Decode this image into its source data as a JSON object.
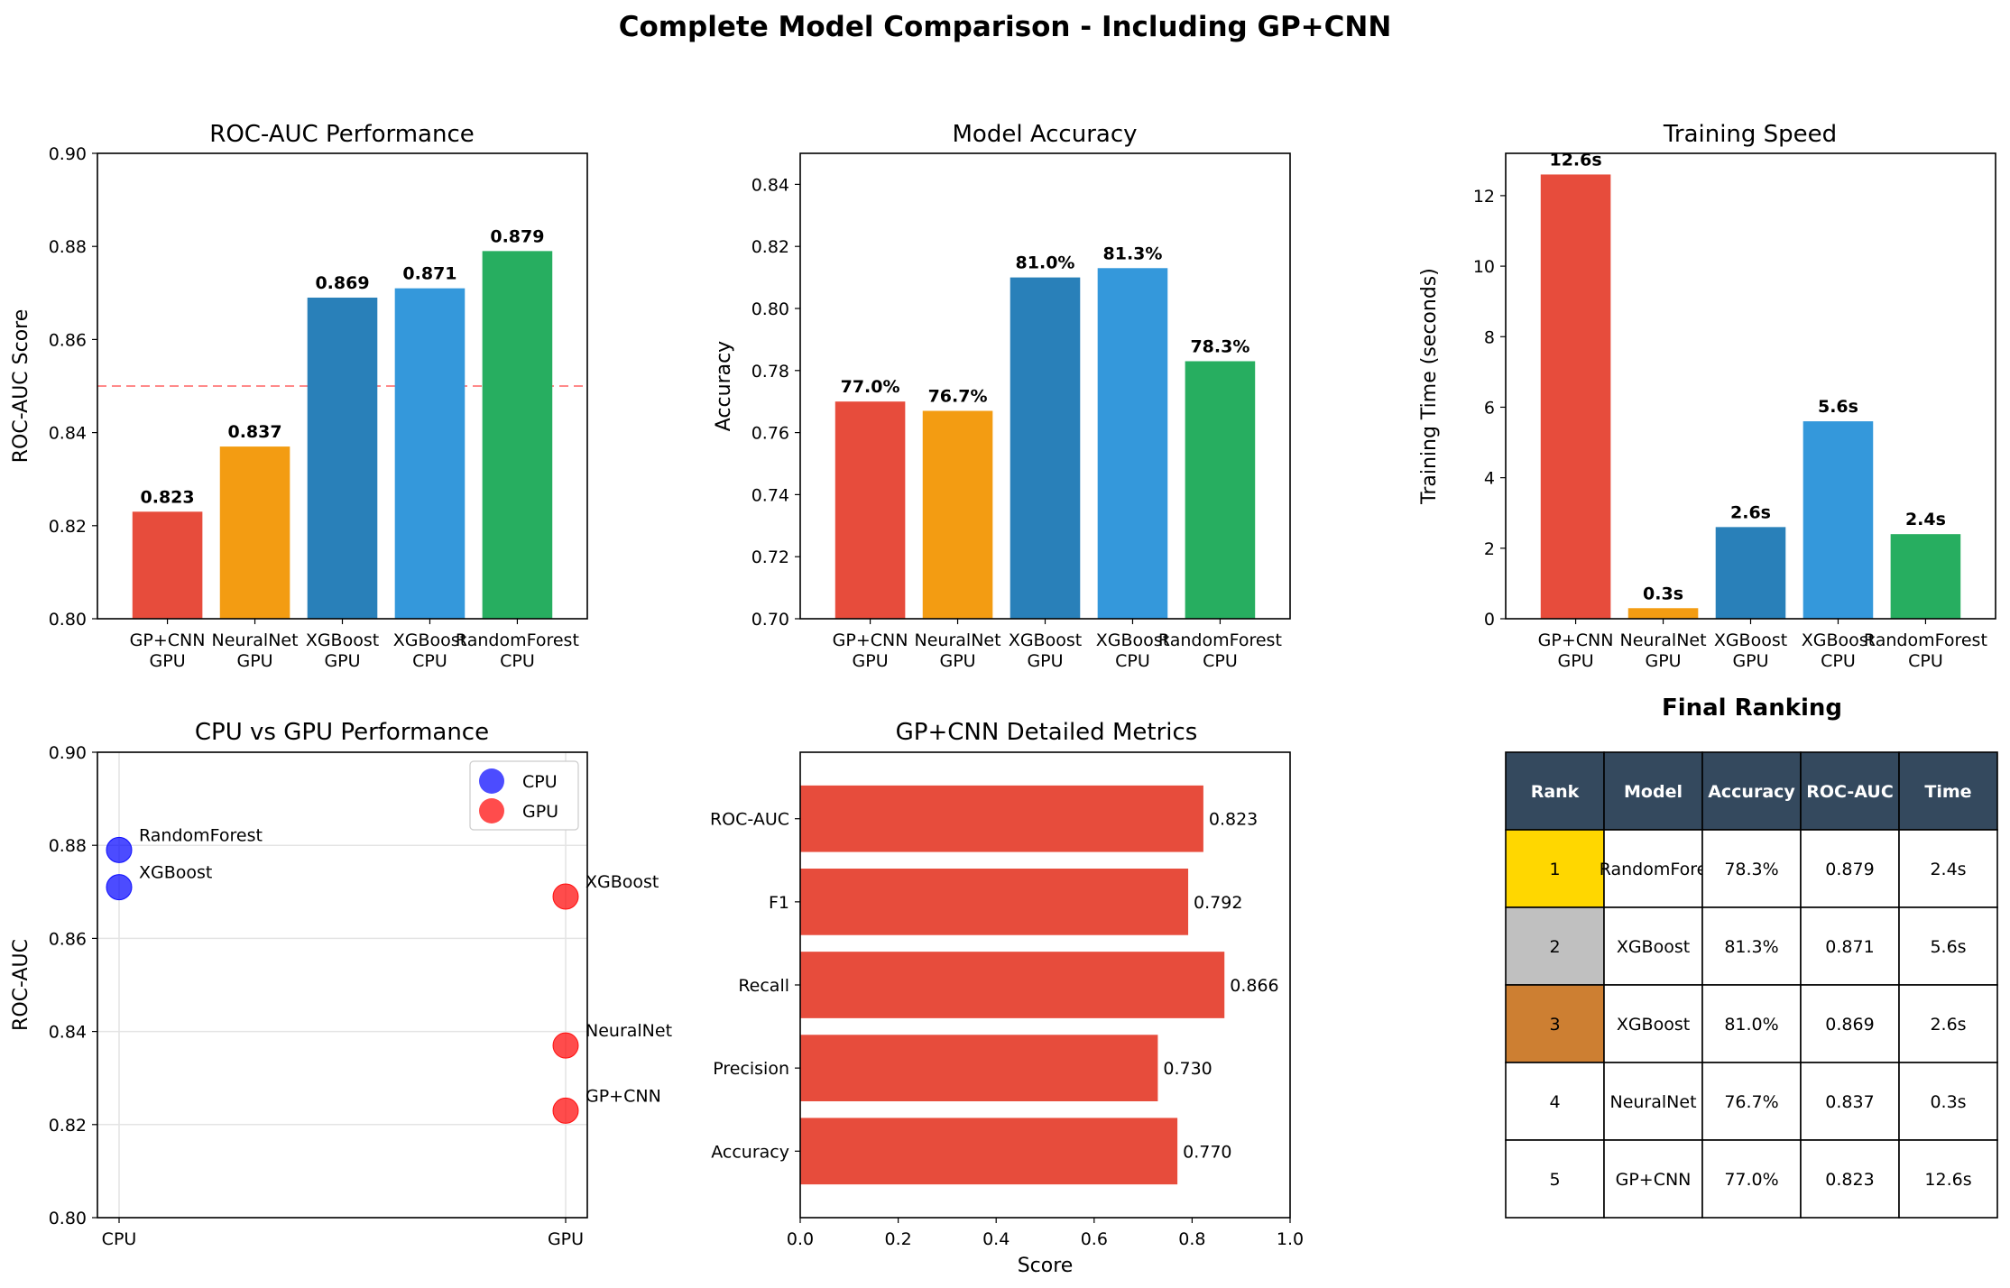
{
  "suptitle": "Complete Model Comparison - Including GP+CNN",
  "chart_data": [
    {
      "type": "bar",
      "title": "ROC-AUC Performance",
      "ylabel": "ROC-AUC Score",
      "categories": [
        "GP+CNN\nGPU",
        "NeuralNet\nGPU",
        "XGBoost\nGPU",
        "XGBoost\nCPU",
        "RandomForest\nCPU"
      ],
      "values": [
        0.823,
        0.837,
        0.869,
        0.871,
        0.879
      ],
      "labels": [
        "0.823",
        "0.837",
        "0.869",
        "0.871",
        "0.879"
      ],
      "colors": [
        "#e74c3c",
        "#f39c12",
        "#2980b9",
        "#3498db",
        "#27ae60"
      ],
      "ylim": [
        0.8,
        0.9
      ],
      "yticks": [
        "0.80",
        "0.82",
        "0.84",
        "0.86",
        "0.88",
        "0.90"
      ],
      "yticks_values": [
        0.8,
        0.82,
        0.84,
        0.86,
        0.88,
        0.9
      ],
      "reference_line": 0.85,
      "reference_color": "#ff8a8a"
    },
    {
      "type": "bar",
      "title": "Model Accuracy",
      "ylabel": "Accuracy",
      "categories": [
        "GP+CNN\nGPU",
        "NeuralNet\nGPU",
        "XGBoost\nGPU",
        "XGBoost\nCPU",
        "RandomForest\nCPU"
      ],
      "values": [
        0.77,
        0.767,
        0.81,
        0.813,
        0.783
      ],
      "labels": [
        "77.0%",
        "76.7%",
        "81.0%",
        "81.3%",
        "78.3%"
      ],
      "colors": [
        "#e74c3c",
        "#f39c12",
        "#2980b9",
        "#3498db",
        "#27ae60"
      ],
      "ylim": [
        0.7,
        0.85
      ],
      "yticks": [
        "0.70",
        "0.72",
        "0.74",
        "0.76",
        "0.78",
        "0.80",
        "0.82",
        "0.84"
      ],
      "yticks_values": [
        0.7,
        0.72,
        0.74,
        0.76,
        0.78,
        0.8,
        0.82,
        0.84
      ]
    },
    {
      "type": "bar",
      "title": "Training Speed",
      "ylabel": "Training Time (seconds)",
      "categories": [
        "GP+CNN\nGPU",
        "NeuralNet\nGPU",
        "XGBoost\nGPU",
        "XGBoost\nCPU",
        "RandomForest\nCPU"
      ],
      "values": [
        12.6,
        0.3,
        2.6,
        5.6,
        2.4
      ],
      "labels": [
        "12.6s",
        "0.3s",
        "2.6s",
        "5.6s",
        "2.4s"
      ],
      "colors": [
        "#e74c3c",
        "#f39c12",
        "#2980b9",
        "#3498db",
        "#27ae60"
      ],
      "ylim": [
        0,
        13.2
      ],
      "yticks": [
        "0",
        "2",
        "4",
        "6",
        "8",
        "10",
        "12"
      ],
      "yticks_values": [
        0,
        2,
        4,
        6,
        8,
        10,
        12
      ]
    },
    {
      "type": "scatter",
      "title": "CPU vs GPU Performance",
      "ylabel": "ROC-AUC",
      "categories": [
        "CPU",
        "GPU"
      ],
      "ylim": [
        0.8,
        0.9
      ],
      "yticks": [
        "0.80",
        "0.82",
        "0.84",
        "0.86",
        "0.88",
        "0.90"
      ],
      "yticks_values": [
        0.8,
        0.82,
        0.84,
        0.86,
        0.88,
        0.9
      ],
      "grid": true,
      "legend": "top-right",
      "series": [
        {
          "name": "CPU",
          "color": "#0000ff",
          "points": [
            {
              "x": "CPU",
              "y": 0.879,
              "label": "RandomForest"
            },
            {
              "x": "CPU",
              "y": 0.871,
              "label": "XGBoost"
            }
          ]
        },
        {
          "name": "GPU",
          "color": "#ff0000",
          "points": [
            {
              "x": "GPU",
              "y": 0.869,
              "label": "XGBoost"
            },
            {
              "x": "GPU",
              "y": 0.837,
              "label": "NeuralNet"
            },
            {
              "x": "GPU",
              "y": 0.823,
              "label": "GP+CNN"
            }
          ]
        }
      ]
    },
    {
      "type": "bar",
      "orientation": "horizontal",
      "title": "GP+CNN Detailed Metrics",
      "xlabel": "Score",
      "categories": [
        "ROC-AUC",
        "F1",
        "Recall",
        "Precision",
        "Accuracy"
      ],
      "values": [
        0.823,
        0.792,
        0.866,
        0.73,
        0.77
      ],
      "labels": [
        "0.823",
        "0.792",
        "0.866",
        "0.730",
        "0.770"
      ],
      "color": "#e74c3c",
      "xlim": [
        0,
        1.0
      ],
      "xticks": [
        "0.0",
        "0.2",
        "0.4",
        "0.6",
        "0.8",
        "1.0"
      ],
      "xticks_values": [
        0,
        0.2,
        0.4,
        0.6,
        0.8,
        1.0
      ]
    },
    {
      "type": "table",
      "title": "Final Ranking",
      "header": [
        "Rank",
        "Model",
        "Accuracy",
        "ROC-AUC",
        "Time"
      ],
      "header_color": "#34495e",
      "rows": [
        [
          "1",
          "RandomFore",
          "78.3%",
          "0.879",
          "2.4s"
        ],
        [
          "2",
          "XGBoost",
          "81.3%",
          "0.871",
          "5.6s"
        ],
        [
          "3",
          "XGBoost",
          "81.0%",
          "0.869",
          "2.6s"
        ],
        [
          "4",
          "NeuralNet",
          "76.7%",
          "0.837",
          "0.3s"
        ],
        [
          "5",
          "GP+CNN",
          "77.0%",
          "0.823",
          "12.6s"
        ]
      ],
      "rank_colors": [
        "#ffd700",
        "#c0c0c0",
        "#cd7f32",
        "#ffffff",
        "#ffffff"
      ]
    }
  ]
}
